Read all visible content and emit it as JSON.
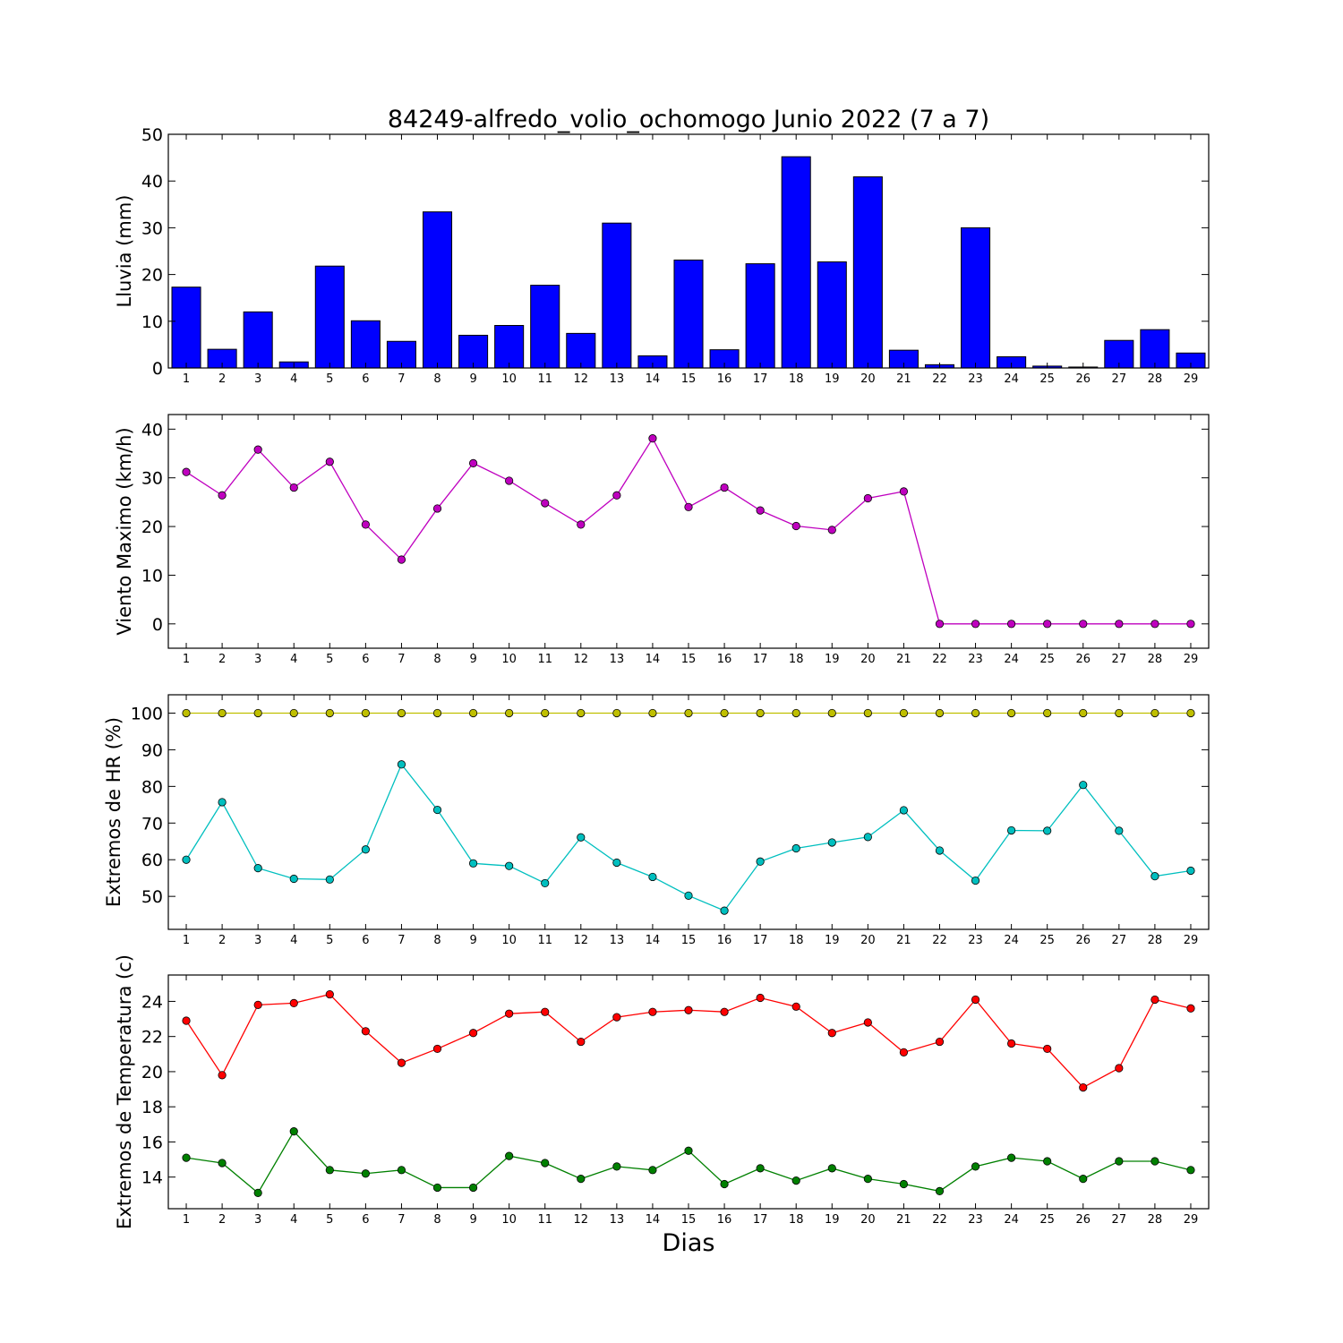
{
  "title": "84249-alfredo_volio_ochomogo Junio 2022  (7 a 7)",
  "xlabel": "Dias",
  "chart_data": [
    {
      "type": "bar",
      "ylabel": "Lluvia (mm)",
      "ylim": [
        0,
        50
      ],
      "yticks": [
        0,
        10,
        20,
        30,
        40,
        50
      ],
      "categories": [
        "1",
        "2",
        "3",
        "4",
        "5",
        "6",
        "7",
        "8",
        "9",
        "10",
        "11",
        "12",
        "13",
        "14",
        "15",
        "16",
        "17",
        "18",
        "19",
        "20",
        "21",
        "22",
        "23",
        "24",
        "25",
        "26",
        "27",
        "28",
        "29"
      ],
      "series": [
        {
          "color": "#0000ff",
          "values": [
            17.3,
            4.0,
            12.0,
            1.3,
            21.8,
            10.1,
            5.7,
            33.4,
            7.0,
            9.1,
            17.7,
            7.4,
            31.0,
            2.6,
            23.1,
            3.9,
            22.3,
            45.2,
            22.7,
            40.9,
            3.8,
            0.7,
            30.0,
            2.4,
            0.4,
            0.2,
            5.9,
            8.2,
            3.2
          ]
        }
      ]
    },
    {
      "type": "line",
      "ylabel": "Viento Maximo (km/h)",
      "ylim": [
        -5,
        43
      ],
      "yticks": [
        0,
        10,
        20,
        30,
        40
      ],
      "categories": [
        "1",
        "2",
        "3",
        "4",
        "5",
        "6",
        "7",
        "8",
        "9",
        "10",
        "11",
        "12",
        "13",
        "14",
        "15",
        "16",
        "17",
        "18",
        "19",
        "20",
        "21",
        "22",
        "23",
        "24",
        "25",
        "26",
        "27",
        "28",
        "29"
      ],
      "series": [
        {
          "color": "#bf00bf",
          "values": [
            31.2,
            26.4,
            35.8,
            28.0,
            33.3,
            20.4,
            13.2,
            23.7,
            33.0,
            29.4,
            24.8,
            20.4,
            26.4,
            38.1,
            24.0,
            28.0,
            23.3,
            20.1,
            19.3,
            25.8,
            27.2,
            0,
            0,
            0,
            0,
            0,
            0,
            0,
            0
          ]
        }
      ]
    },
    {
      "type": "line",
      "ylabel": "Extremos de HR (%)",
      "ylim": [
        41,
        105
      ],
      "yticks": [
        50,
        60,
        70,
        80,
        90,
        100
      ],
      "categories": [
        "1",
        "2",
        "3",
        "4",
        "5",
        "6",
        "7",
        "8",
        "9",
        "10",
        "11",
        "12",
        "13",
        "14",
        "15",
        "16",
        "17",
        "18",
        "19",
        "20",
        "21",
        "22",
        "23",
        "24",
        "25",
        "26",
        "27",
        "28",
        "29"
      ],
      "series": [
        {
          "color": "#bfbf00",
          "values": [
            100,
            100,
            100,
            100,
            100,
            100,
            100,
            100,
            100,
            100,
            100,
            100,
            100,
            100,
            100,
            100,
            100,
            100,
            100,
            100,
            100,
            100,
            100,
            100,
            100,
            100,
            100,
            100,
            100
          ]
        },
        {
          "color": "#00bfbf",
          "values": [
            60.0,
            75.7,
            57.7,
            54.8,
            54.6,
            62.8,
            86.0,
            73.6,
            59.0,
            58.3,
            53.6,
            66.1,
            59.2,
            55.3,
            50.2,
            46.1,
            59.5,
            63.1,
            64.7,
            66.2,
            73.5,
            62.5,
            54.3,
            68.0,
            67.9,
            80.4,
            67.9,
            55.5,
            57.0
          ]
        }
      ]
    },
    {
      "type": "line",
      "ylabel": "Extremos de Temperatura (c)",
      "ylim": [
        12.2,
        25.5
      ],
      "yticks": [
        14,
        16,
        18,
        20,
        22,
        24
      ],
      "categories": [
        "1",
        "2",
        "3",
        "4",
        "5",
        "6",
        "7",
        "8",
        "9",
        "10",
        "11",
        "12",
        "13",
        "14",
        "15",
        "16",
        "17",
        "18",
        "19",
        "20",
        "21",
        "22",
        "23",
        "24",
        "25",
        "26",
        "27",
        "28",
        "29"
      ],
      "series": [
        {
          "color": "#ff0000",
          "values": [
            22.9,
            19.8,
            23.8,
            23.9,
            24.4,
            22.3,
            20.5,
            21.3,
            22.2,
            23.3,
            23.4,
            21.7,
            23.1,
            23.4,
            23.5,
            23.4,
            24.2,
            23.7,
            22.2,
            22.8,
            21.1,
            21.7,
            24.1,
            21.6,
            21.3,
            19.1,
            20.2,
            24.1,
            23.6
          ]
        },
        {
          "color": "#008000",
          "values": [
            15.1,
            14.8,
            13.1,
            16.6,
            14.4,
            14.2,
            14.4,
            13.4,
            13.4,
            15.2,
            14.8,
            13.9,
            14.6,
            14.4,
            15.5,
            13.6,
            14.5,
            13.8,
            14.5,
            13.9,
            13.6,
            13.2,
            14.6,
            15.1,
            14.9,
            13.9,
            14.9,
            14.9,
            14.4
          ]
        }
      ]
    }
  ]
}
